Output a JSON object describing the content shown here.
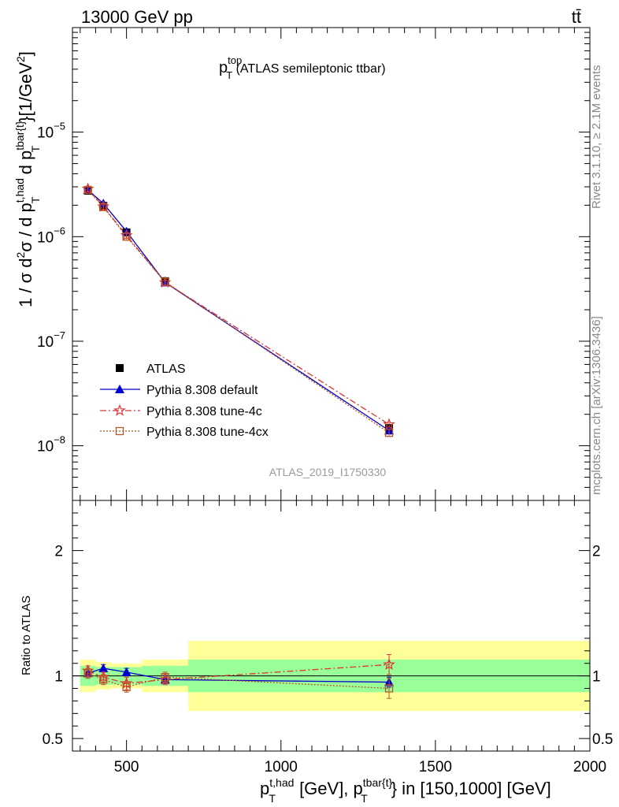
{
  "header": {
    "left": "13000 GeV pp",
    "right": "tt̄"
  },
  "side": {
    "rivet": "Rivet 3.1.10, ≥ 2.1M events",
    "mcplots": "mcplots.cern.ch [arXiv:1306.3436]"
  },
  "plot_title": {
    "main": "p",
    "sup": "top",
    "sub": "T",
    "rest": " (ATLAS semileptonic ttbar)"
  },
  "watermark": "ATLAS_2019_I1750330",
  "main_ylabel": "1 / σ d²σ / d p_T^{t,had} d p_T^{tbar{t}} [1/GeV²]",
  "ratio_ylabel": "Ratio to ATLAS",
  "xlabel": "p_T^{t,had} [GeV], p_T^{tbar{t}} in [150,1000] [GeV]",
  "colors": {
    "atlas": "#000000",
    "default": "#0000cc",
    "tune4c": "#dd3333",
    "tune4cx": "#bb5522",
    "band_yellow": "#ffff99",
    "band_green": "#99ff99"
  },
  "chart_data": {
    "type": "line",
    "title": "p_T^top (ATLAS semileptonic ttbar)",
    "x": [
      375,
      425,
      500,
      625,
      1350
    ],
    "xlim": [
      325,
      2000
    ],
    "x_ticks": [
      500,
      1000,
      1500,
      2000
    ],
    "ylim_log": [
      3e-09,
      0.0001
    ],
    "y_ticks": [
      {
        "value": 1e-05,
        "base": "10",
        "exp": "−5"
      },
      {
        "value": 1e-06,
        "base": "10",
        "exp": "−6"
      },
      {
        "value": 1e-07,
        "base": "10",
        "exp": "−7"
      },
      {
        "value": 1e-08,
        "base": "10",
        "exp": "−8"
      }
    ],
    "legend": [
      "ATLAS",
      "Pythia 8.308 default",
      "Pythia 8.308 tune-4c",
      "Pythia 8.308 tune-4cx"
    ],
    "series": [
      {
        "name": "ATLAS",
        "key": "atlas",
        "marker": "square",
        "values": [
          2.75e-06,
          1.97e-06,
          1.1e-06,
          3.75e-07,
          1.48e-08
        ]
      },
      {
        "name": "Pythia 8.308 default",
        "key": "default",
        "marker": "triangle",
        "values": [
          2.8e-06,
          2.08e-06,
          1.12e-06,
          3.65e-07,
          1.4e-08
        ]
      },
      {
        "name": "Pythia 8.308 tune-4c",
        "key": "tune4c",
        "marker": "star",
        "values": [
          2.86e-06,
          1.94e-06,
          1.03e-06,
          3.65e-07,
          1.6e-08
        ]
      },
      {
        "name": "Pythia 8.308 tune-4cx",
        "key": "tune4cx",
        "marker": "opensquare",
        "values": [
          2.8e-06,
          1.92e-06,
          1e-06,
          3.7e-07,
          1.33e-08
        ]
      }
    ],
    "ratio": {
      "ylim": [
        0.4,
        2.4
      ],
      "y_ticks": [
        {
          "value": 0.5,
          "label": "0.5"
        },
        {
          "value": 1,
          "label": "1"
        },
        {
          "value": 2,
          "label": "2"
        }
      ],
      "bins": [
        {
          "lo": 350,
          "hi": 400,
          "green": [
            0.92,
            1.08
          ],
          "yellow": [
            0.87,
            1.13
          ]
        },
        {
          "lo": 400,
          "hi": 450,
          "green": [
            0.93,
            1.07
          ],
          "yellow": [
            0.89,
            1.11
          ]
        },
        {
          "lo": 450,
          "hi": 550,
          "green": [
            0.93,
            1.07
          ],
          "yellow": [
            0.9,
            1.1
          ]
        },
        {
          "lo": 550,
          "hi": 700,
          "green": [
            0.92,
            1.08
          ],
          "yellow": [
            0.87,
            1.13
          ]
        },
        {
          "lo": 700,
          "hi": 2000,
          "green": [
            0.87,
            1.13
          ],
          "yellow": [
            0.72,
            1.28
          ]
        }
      ],
      "series": [
        {
          "key": "default",
          "marker": "triangle",
          "values": [
            1.02,
            1.06,
            1.03,
            0.97,
            0.95
          ],
          "err": [
            0.03,
            0.03,
            0.03,
            0.03,
            0.04
          ]
        },
        {
          "key": "tune4c",
          "marker": "star",
          "values": [
            1.04,
            0.99,
            0.94,
            0.97,
            1.09
          ],
          "err": [
            0.04,
            0.04,
            0.05,
            0.04,
            0.08
          ]
        },
        {
          "key": "tune4cx",
          "marker": "opensquare",
          "values": [
            1.02,
            0.97,
            0.91,
            0.99,
            0.9
          ],
          "err": [
            0.04,
            0.04,
            0.04,
            0.04,
            0.08
          ]
        }
      ]
    }
  }
}
